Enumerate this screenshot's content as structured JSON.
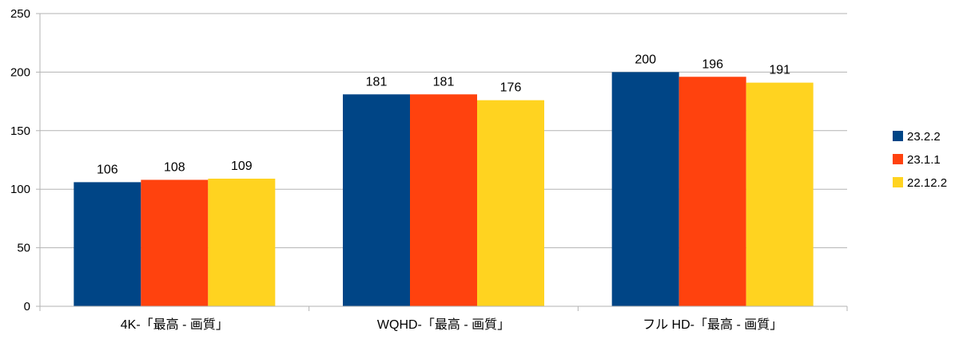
{
  "chart_data": {
    "type": "bar",
    "categories": [
      "4K-「最高 - 画質」",
      "WQHD-「最高 - 画質」",
      "フル HD-「最高 - 画質」"
    ],
    "series": [
      {
        "name": "23.2.2",
        "values": [
          106,
          181,
          200
        ],
        "color": "#004586"
      },
      {
        "name": "23.1.1",
        "values": [
          108,
          181,
          196
        ],
        "color": "#ff420e"
      },
      {
        "name": "22.12.2",
        "values": [
          109,
          176,
          191
        ],
        "color": "#ffd320"
      }
    ],
    "yticks": [
      0,
      50,
      100,
      150,
      200,
      250
    ],
    "ylim": [
      0,
      250
    ],
    "grid": true,
    "legend": "right"
  }
}
